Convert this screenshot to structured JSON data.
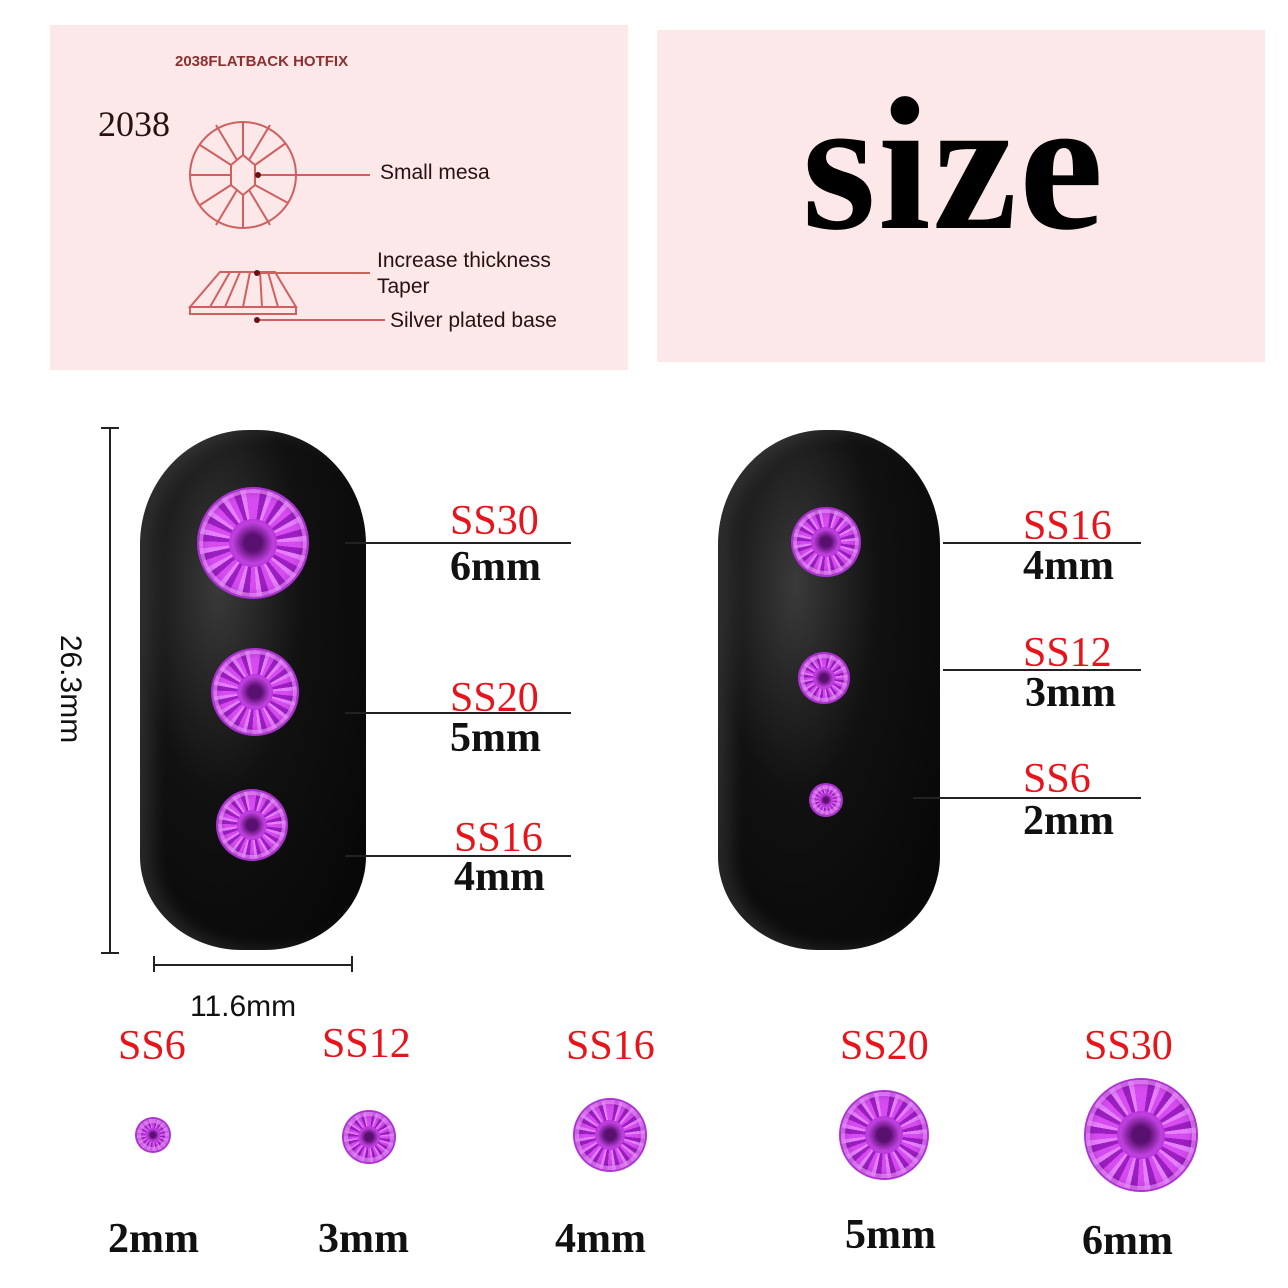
{
  "diagram": {
    "header": "2038FLATBACK HOTFIX",
    "model": "2038",
    "labels": [
      "Small mesa",
      "Increase thickness",
      "Taper",
      "Silver plated base"
    ]
  },
  "title": "size",
  "dimensions": {
    "height": "26.3mm",
    "width": "11.6mm"
  },
  "left_nail": [
    {
      "ss": "SS30",
      "mm": "6mm"
    },
    {
      "ss": "SS20",
      "mm": "5mm"
    },
    {
      "ss": "SS16",
      "mm": "4mm"
    }
  ],
  "right_nail": [
    {
      "ss": "SS16",
      "mm": "4mm"
    },
    {
      "ss": "SS12",
      "mm": "3mm"
    },
    {
      "ss": "SS6",
      "mm": "2mm"
    }
  ],
  "row": [
    {
      "ss": "SS6",
      "mm": "2mm"
    },
    {
      "ss": "SS12",
      "mm": "3mm"
    },
    {
      "ss": "SS16",
      "mm": "4mm"
    },
    {
      "ss": "SS20",
      "mm": "5mm"
    },
    {
      "ss": "SS30",
      "mm": "6mm"
    }
  ],
  "colors": {
    "label_red": "#e8141c",
    "gem": "#c030e0",
    "panel": "#fce8e8",
    "diagram_line": "#d06060"
  }
}
